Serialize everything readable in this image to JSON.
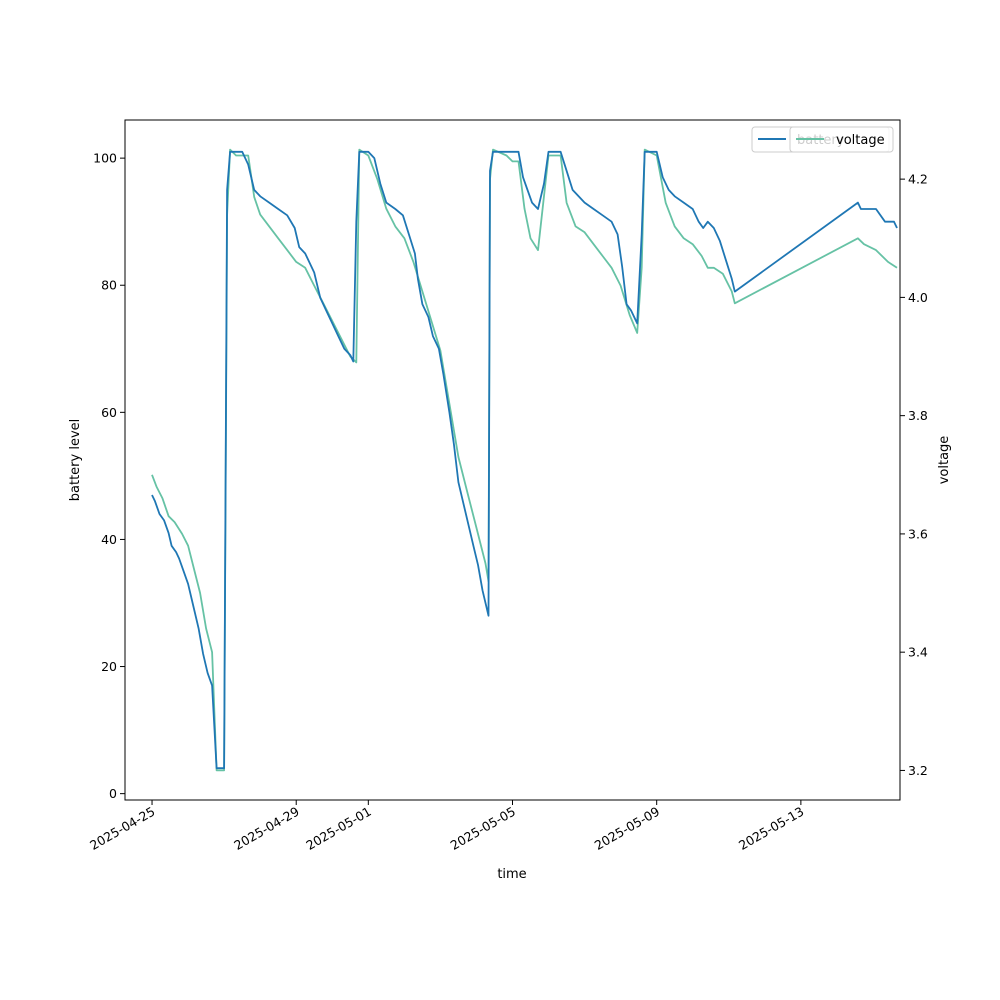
{
  "chart_data": {
    "type": "line",
    "title": "",
    "xlabel": "time",
    "ylabel": "battery level",
    "y2label": "voltage",
    "xlim": [
      "2025-04-24T06:00",
      "2025-05-15T18:00"
    ],
    "ylim": [
      -1,
      106
    ],
    "y2lim": [
      3.15,
      4.3
    ],
    "x_ticks": [
      "2025-04-25",
      "2025-04-29",
      "2025-05-01",
      "2025-05-05",
      "2025-05-09",
      "2025-05-13"
    ],
    "y_ticks": [
      0,
      20,
      40,
      60,
      80,
      100
    ],
    "y2_ticks": [
      3.2,
      3.4,
      3.6,
      3.8,
      4.0,
      4.2
    ],
    "grid": false,
    "legends": [
      {
        "position": "top-right",
        "entries": [
          "battery"
        ]
      },
      {
        "position": "top-right",
        "entries": [
          "voltage"
        ]
      }
    ],
    "series": [
      {
        "name": "battery",
        "axis": "left",
        "color": "#1f77b4",
        "points": [
          [
            "2025-04-25T00:00",
            47
          ],
          [
            "2025-04-25T02:00",
            46
          ],
          [
            "2025-04-25T05:00",
            44
          ],
          [
            "2025-04-25T08:00",
            43
          ],
          [
            "2025-04-25T11:00",
            41
          ],
          [
            "2025-04-25T13:00",
            39
          ],
          [
            "2025-04-25T16:00",
            38
          ],
          [
            "2025-04-25T18:00",
            37
          ],
          [
            "2025-04-25T21:00",
            35
          ],
          [
            "2025-04-26T00:00",
            33
          ],
          [
            "2025-04-26T03:00",
            30
          ],
          [
            "2025-04-26T07:00",
            26
          ],
          [
            "2025-04-26T10:00",
            22
          ],
          [
            "2025-04-26T13:00",
            19
          ],
          [
            "2025-04-26T16:00",
            17
          ],
          [
            "2025-04-26T19:00",
            4
          ],
          [
            "2025-04-26T23:00",
            4
          ],
          [
            "2025-04-27T00:00",
            4
          ],
          [
            "2025-04-27T02:00",
            95
          ],
          [
            "2025-04-27T04:00",
            101
          ],
          [
            "2025-04-27T12:00",
            101
          ],
          [
            "2025-04-27T16:00",
            99
          ],
          [
            "2025-04-27T20:00",
            95
          ],
          [
            "2025-04-28T00:00",
            94
          ],
          [
            "2025-04-28T06:00",
            93
          ],
          [
            "2025-04-28T12:00",
            92
          ],
          [
            "2025-04-28T18:00",
            91
          ],
          [
            "2025-04-28T23:00",
            89
          ],
          [
            "2025-04-29T02:00",
            86
          ],
          [
            "2025-04-29T06:00",
            85
          ],
          [
            "2025-04-29T12:00",
            82
          ],
          [
            "2025-04-29T16:00",
            78
          ],
          [
            "2025-04-29T20:00",
            76
          ],
          [
            "2025-04-30T00:00",
            74
          ],
          [
            "2025-04-30T04:00",
            72
          ],
          [
            "2025-04-30T08:00",
            70
          ],
          [
            "2025-04-30T12:00",
            69
          ],
          [
            "2025-04-30T14:00",
            68
          ],
          [
            "2025-04-30T16:00",
            90
          ],
          [
            "2025-04-30T18:00",
            101
          ],
          [
            "2025-05-01T00:00",
            101
          ],
          [
            "2025-05-01T04:00",
            100
          ],
          [
            "2025-05-01T08:00",
            96
          ],
          [
            "2025-05-01T12:00",
            93
          ],
          [
            "2025-05-01T18:00",
            92
          ],
          [
            "2025-05-01T23:00",
            91
          ],
          [
            "2025-05-02T03:00",
            88
          ],
          [
            "2025-05-02T07:00",
            85
          ],
          [
            "2025-05-02T09:00",
            81
          ],
          [
            "2025-05-02T12:00",
            77
          ],
          [
            "2025-05-02T16:00",
            75
          ],
          [
            "2025-05-02T19:00",
            72
          ],
          [
            "2025-05-02T23:00",
            70
          ],
          [
            "2025-05-03T02:00",
            66
          ],
          [
            "2025-05-03T06:00",
            60
          ],
          [
            "2025-05-03T09:00",
            55
          ],
          [
            "2025-05-03T12:00",
            49
          ],
          [
            "2025-05-03T15:00",
            46
          ],
          [
            "2025-05-03T19:00",
            42
          ],
          [
            "2025-05-03T22:00",
            39
          ],
          [
            "2025-05-04T01:00",
            36
          ],
          [
            "2025-05-04T04:00",
            32
          ],
          [
            "2025-05-04T07:00",
            29
          ],
          [
            "2025-05-04T08:00",
            28
          ],
          [
            "2025-05-04T09:00",
            98
          ],
          [
            "2025-05-04T11:00",
            101
          ],
          [
            "2025-05-04T20:00",
            101
          ],
          [
            "2025-05-05T00:00",
            101
          ],
          [
            "2025-05-05T04:00",
            101
          ],
          [
            "2025-05-05T07:00",
            97
          ],
          [
            "2025-05-05T10:00",
            95
          ],
          [
            "2025-05-05T13:00",
            93
          ],
          [
            "2025-05-05T17:00",
            92
          ],
          [
            "2025-05-05T21:00",
            96
          ],
          [
            "2025-05-06T00:00",
            101
          ],
          [
            "2025-05-06T08:00",
            101
          ],
          [
            "2025-05-06T12:00",
            98
          ],
          [
            "2025-05-06T16:00",
            95
          ],
          [
            "2025-05-06T20:00",
            94
          ],
          [
            "2025-05-07T00:00",
            93
          ],
          [
            "2025-05-07T06:00",
            92
          ],
          [
            "2025-05-07T12:00",
            91
          ],
          [
            "2025-05-07T18:00",
            90
          ],
          [
            "2025-05-07T22:00",
            88
          ],
          [
            "2025-05-08T01:00",
            83
          ],
          [
            "2025-05-08T04:00",
            77
          ],
          [
            "2025-05-08T07:00",
            76
          ],
          [
            "2025-05-08T11:00",
            74
          ],
          [
            "2025-05-08T14:00",
            88
          ],
          [
            "2025-05-08T16:00",
            101
          ],
          [
            "2025-05-09T00:00",
            101
          ],
          [
            "2025-05-09T04:00",
            97
          ],
          [
            "2025-05-09T08:00",
            95
          ],
          [
            "2025-05-09T12:00",
            94
          ],
          [
            "2025-05-09T18:00",
            93
          ],
          [
            "2025-05-10T00:00",
            92
          ],
          [
            "2025-05-10T04:00",
            90
          ],
          [
            "2025-05-10T07:00",
            89
          ],
          [
            "2025-05-10T10:00",
            90
          ],
          [
            "2025-05-10T14:00",
            89
          ],
          [
            "2025-05-10T18:00",
            87
          ],
          [
            "2025-05-10T22:00",
            84
          ],
          [
            "2025-05-11T02:00",
            81
          ],
          [
            "2025-05-11T04:00",
            79
          ],
          [
            "2025-05-14T14:00",
            93
          ],
          [
            "2025-05-14T16:00",
            92
          ],
          [
            "2025-05-15T02:00",
            92
          ],
          [
            "2025-05-15T08:00",
            90
          ],
          [
            "2025-05-15T14:00",
            90
          ],
          [
            "2025-05-15T16:00",
            89
          ]
        ]
      },
      {
        "name": "voltage",
        "axis": "right",
        "color": "#66c2a5",
        "points": [
          [
            "2025-04-25T00:00",
            3.7
          ],
          [
            "2025-04-25T03:00",
            3.68
          ],
          [
            "2025-04-25T07:00",
            3.66
          ],
          [
            "2025-04-25T11:00",
            3.63
          ],
          [
            "2025-04-25T15:00",
            3.62
          ],
          [
            "2025-04-25T20:00",
            3.6
          ],
          [
            "2025-04-26T00:00",
            3.58
          ],
          [
            "2025-04-26T04:00",
            3.54
          ],
          [
            "2025-04-26T08:00",
            3.5
          ],
          [
            "2025-04-26T12:00",
            3.44
          ],
          [
            "2025-04-26T16:00",
            3.4
          ],
          [
            "2025-04-26T19:00",
            3.2
          ],
          [
            "2025-04-27T00:00",
            3.2
          ],
          [
            "2025-04-27T02:00",
            4.14
          ],
          [
            "2025-04-27T04:00",
            4.25
          ],
          [
            "2025-04-27T08:00",
            4.24
          ],
          [
            "2025-04-27T16:00",
            4.24
          ],
          [
            "2025-04-27T20:00",
            4.17
          ],
          [
            "2025-04-28T00:00",
            4.14
          ],
          [
            "2025-04-28T06:00",
            4.12
          ],
          [
            "2025-04-28T12:00",
            4.1
          ],
          [
            "2025-04-28T18:00",
            4.08
          ],
          [
            "2025-04-29T00:00",
            4.06
          ],
          [
            "2025-04-29T06:00",
            4.05
          ],
          [
            "2025-04-29T12:00",
            4.02
          ],
          [
            "2025-04-29T18:00",
            3.99
          ],
          [
            "2025-04-30T00:00",
            3.96
          ],
          [
            "2025-04-30T06:00",
            3.93
          ],
          [
            "2025-04-30T12:00",
            3.9
          ],
          [
            "2025-04-30T16:00",
            3.89
          ],
          [
            "2025-04-30T18:00",
            4.25
          ],
          [
            "2025-05-01T00:00",
            4.24
          ],
          [
            "2025-05-01T06:00",
            4.2
          ],
          [
            "2025-05-01T12:00",
            4.15
          ],
          [
            "2025-05-01T18:00",
            4.12
          ],
          [
            "2025-05-02T00:00",
            4.1
          ],
          [
            "2025-05-02T06:00",
            4.06
          ],
          [
            "2025-05-02T12:00",
            4.01
          ],
          [
            "2025-05-02T18:00",
            3.96
          ],
          [
            "2025-05-03T00:00",
            3.91
          ],
          [
            "2025-05-03T06:00",
            3.82
          ],
          [
            "2025-05-03T12:00",
            3.73
          ],
          [
            "2025-05-03T18:00",
            3.67
          ],
          [
            "2025-05-04T00:00",
            3.61
          ],
          [
            "2025-05-04T06:00",
            3.55
          ],
          [
            "2025-05-04T08:00",
            3.52
          ],
          [
            "2025-05-04T09:00",
            4.2
          ],
          [
            "2025-05-04T11:00",
            4.25
          ],
          [
            "2025-05-04T20:00",
            4.24
          ],
          [
            "2025-05-05T00:00",
            4.23
          ],
          [
            "2025-05-05T04:00",
            4.23
          ],
          [
            "2025-05-05T08:00",
            4.15
          ],
          [
            "2025-05-05T12:00",
            4.1
          ],
          [
            "2025-05-05T17:00",
            4.08
          ],
          [
            "2025-05-06T00:00",
            4.24
          ],
          [
            "2025-05-06T08:00",
            4.24
          ],
          [
            "2025-05-06T12:00",
            4.16
          ],
          [
            "2025-05-06T18:00",
            4.12
          ],
          [
            "2025-05-07T00:00",
            4.11
          ],
          [
            "2025-05-07T06:00",
            4.09
          ],
          [
            "2025-05-07T12:00",
            4.07
          ],
          [
            "2025-05-07T18:00",
            4.05
          ],
          [
            "2025-05-08T00:00",
            4.02
          ],
          [
            "2025-05-08T06:00",
            3.97
          ],
          [
            "2025-05-08T11:00",
            3.94
          ],
          [
            "2025-05-08T14:00",
            4.05
          ],
          [
            "2025-05-08T16:00",
            4.25
          ],
          [
            "2025-05-09T00:00",
            4.24
          ],
          [
            "2025-05-09T06:00",
            4.16
          ],
          [
            "2025-05-09T12:00",
            4.12
          ],
          [
            "2025-05-09T18:00",
            4.1
          ],
          [
            "2025-05-10T00:00",
            4.09
          ],
          [
            "2025-05-10T06:00",
            4.07
          ],
          [
            "2025-05-10T10:00",
            4.05
          ],
          [
            "2025-05-10T14:00",
            4.05
          ],
          [
            "2025-05-10T20:00",
            4.04
          ],
          [
            "2025-05-11T02:00",
            4.01
          ],
          [
            "2025-05-11T04:00",
            3.99
          ],
          [
            "2025-05-14T14:00",
            4.1
          ],
          [
            "2025-05-14T18:00",
            4.09
          ],
          [
            "2025-05-15T02:00",
            4.08
          ],
          [
            "2025-05-15T10:00",
            4.06
          ],
          [
            "2025-05-15T16:00",
            4.05
          ]
        ]
      }
    ]
  }
}
